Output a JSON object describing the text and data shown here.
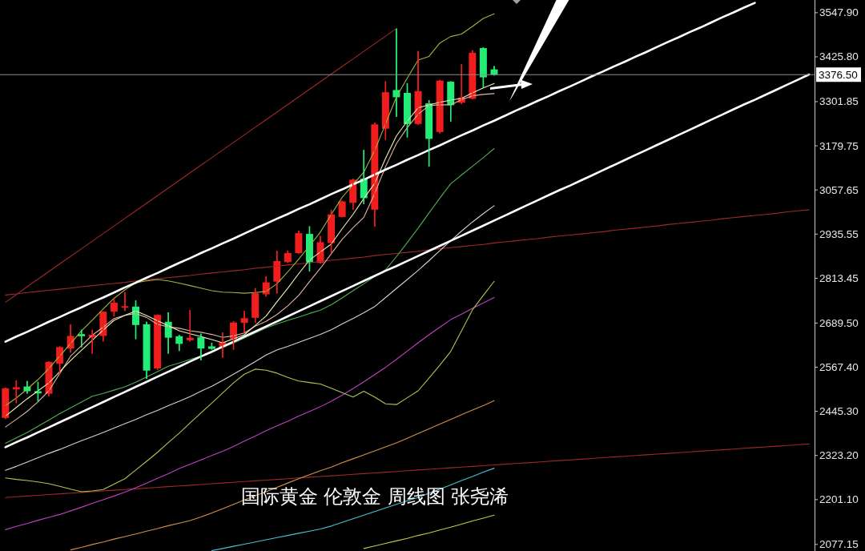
{
  "chart_data": {
    "type": "candlestick",
    "annotations": [
      "国际黄金 伦敦金 周线图 张尧浠"
    ],
    "categories": [
      null,
      null,
      null,
      null,
      null,
      null,
      null,
      null,
      null,
      null,
      null,
      null,
      null,
      null,
      null,
      null,
      null,
      null,
      null,
      null,
      null,
      null,
      null,
      null,
      null,
      null,
      null,
      null,
      null,
      null,
      null,
      null,
      null,
      null,
      null,
      null,
      null,
      null,
      null,
      null,
      null,
      null,
      null,
      null,
      null,
      null,
      null,
      null,
      null,
      null,
      null,
      null,
      null,
      null,
      null,
      null,
      null,
      null,
      null,
      null,
      null,
      null,
      null,
      null,
      null,
      null,
      null,
      null,
      null,
      null,
      null,
      null,
      null,
      null,
      null
    ],
    "ohlc": [
      [
        2427,
        2511,
        2424,
        2509
      ],
      [
        2506,
        2531,
        2468,
        2512
      ],
      [
        2514,
        2529,
        2494,
        2501
      ],
      [
        2501,
        2527,
        2472,
        2495
      ],
      [
        2494,
        2584,
        2487,
        2582
      ],
      [
        2577,
        2625,
        2549,
        2623
      ],
      [
        2619,
        2686,
        2608,
        2654
      ],
      [
        2659,
        2671,
        2623,
        2653
      ],
      [
        2650,
        2671,
        2605,
        2657
      ],
      [
        2654,
        2722,
        2639,
        2721
      ],
      [
        2721,
        2760,
        2708,
        2746
      ],
      [
        2732,
        2775,
        2723,
        2736
      ],
      [
        2735,
        2752,
        2645,
        2684
      ],
      [
        2686,
        2693,
        2535,
        2558
      ],
      [
        2564,
        2713,
        2560,
        2712
      ],
      [
        2693,
        2719,
        2605,
        2649
      ],
      [
        2653,
        2657,
        2612,
        2632
      ],
      [
        2642,
        2726,
        2638,
        2649
      ],
      [
        2650,
        2660,
        2586,
        2619
      ],
      [
        2625,
        2635,
        2616,
        2618
      ],
      [
        2623,
        2664,
        2594,
        2637
      ],
      [
        2645,
        2695,
        2616,
        2691
      ],
      [
        2690,
        2723,
        2664,
        2703
      ],
      [
        2704,
        2786,
        2690,
        2772
      ],
      [
        2769,
        2819,
        2763,
        2802
      ],
      [
        2804,
        2889,
        2771,
        2861
      ],
      [
        2858,
        2890,
        2856,
        2883
      ],
      [
        2883,
        2945,
        2881,
        2938
      ],
      [
        2936,
        2957,
        2832,
        2858
      ],
      [
        2856,
        2930,
        2854,
        2913
      ],
      [
        2911,
        3003,
        2882,
        2990
      ],
      [
        2983,
        3028,
        2982,
        3026
      ],
      [
        3022,
        3089,
        3003,
        3086
      ],
      [
        3089,
        3168,
        3018,
        3035
      ],
      [
        3003,
        3244,
        2956,
        3239
      ],
      [
        3227,
        3358,
        3196,
        3328
      ],
      [
        3334,
        3504,
        3260,
        3314
      ],
      [
        3326,
        3353,
        3203,
        3240
      ],
      [
        3240,
        3442,
        3238,
        3331
      ],
      [
        3297,
        3306,
        3122,
        3199
      ],
      [
        3218,
        3362,
        3214,
        3360
      ],
      [
        3357,
        3358,
        3247,
        3292
      ],
      [
        3299,
        3406,
        3295,
        3313
      ],
      [
        3310,
        3444,
        3309,
        3437
      ],
      [
        3450,
        3452,
        3340,
        3369
      ],
      [
        3391,
        3400,
        3374,
        3376.5
      ],
      null,
      null,
      null,
      null,
      null,
      null,
      null,
      null,
      null,
      null,
      null,
      null,
      null,
      null,
      null,
      null,
      null,
      null,
      null,
      null,
      null,
      null,
      null,
      null,
      null,
      null,
      null,
      null,
      null
    ],
    "colors": [
      "#f01e1e",
      "#f01e1e",
      "#22ee77",
      "#22ee77",
      "#f01e1e",
      "#f01e1e",
      "#f01e1e",
      "#22ee77",
      "#f01e1e",
      "#f01e1e",
      "#f01e1e",
      "#f01e1e",
      "#22ee77",
      "#22ee77",
      "#f01e1e",
      "#22ee77",
      "#22ee77",
      "#f01e1e",
      "#22ee77",
      "#22ee77",
      "#f01e1e",
      "#f01e1e",
      "#f01e1e",
      "#f01e1e",
      "#f01e1e",
      "#f01e1e",
      "#f01e1e",
      "#f01e1e",
      "#22ee77",
      "#f01e1e",
      "#f01e1e",
      "#f01e1e",
      "#f01e1e",
      "#22ee77",
      "#f01e1e",
      "#f01e1e",
      "#22ee77",
      "#22ee77",
      "#f01e1e",
      "#22ee77",
      "#f01e1e",
      "#22ee77",
      "#f01e1e",
      "#f01e1e",
      "#22ee77",
      "#22ee77",
      null,
      null,
      null,
      null,
      null,
      null,
      null,
      null,
      null,
      null,
      null,
      null,
      null,
      null,
      null,
      null,
      null,
      null,
      null,
      null,
      null,
      null,
      null,
      null,
      null,
      null,
      null,
      null,
      null
    ],
    "series": [
      {
        "type": "line",
        "color": "#a02828",
        "values": [
          2747,
          2768,
          2790,
          2811,
          2832,
          2853,
          2874,
          2895,
          2916,
          2937,
          2958,
          2979,
          3000,
          3021,
          3042,
          3063,
          3084,
          3105,
          3126,
          3147,
          3168,
          3189,
          3210,
          3231,
          3252,
          3273,
          3294,
          3315,
          3336,
          3357,
          3378,
          3399,
          3420,
          3441,
          3462,
          3483,
          3504,
          null,
          null,
          null,
          null,
          null,
          null,
          null,
          null,
          null,
          null,
          null,
          null,
          null,
          null,
          null,
          null,
          null,
          null,
          null,
          null,
          null,
          null,
          null,
          null,
          null,
          null,
          null,
          null,
          null,
          null,
          null,
          null,
          null,
          null,
          null,
          null,
          null,
          null
        ]
      },
      {
        "type": "line",
        "color": "#a02828",
        "values": [
          2767,
          2770,
          2774,
          2777,
          2780,
          2783,
          2786,
          2790,
          2793,
          2796,
          2799,
          2802,
          2806,
          2809,
          2812,
          2815,
          2818,
          2821,
          2825,
          2828,
          2831,
          2834,
          2837,
          2841,
          2844,
          2847,
          2850,
          2853,
          2856,
          2860,
          2863,
          2866,
          2869,
          2872,
          2876,
          2879,
          2882,
          2885,
          2888,
          2892,
          2895,
          2898,
          2901,
          2904,
          2907,
          2911,
          2914,
          2917,
          2920,
          2923,
          2927,
          2930,
          2933,
          2936,
          2939,
          2942,
          2946,
          2949,
          2952,
          2955,
          2958,
          2962,
          2965,
          2968,
          2971,
          2974,
          2978,
          2981,
          2984,
          2987,
          2990,
          2993,
          2997,
          3000,
          3003
        ]
      },
      {
        "type": "line",
        "color": "#a02828",
        "values": [
          2207,
          2209,
          2211,
          2213,
          2215,
          2217,
          2219,
          2221,
          2223,
          2225,
          2227,
          2229,
          2231,
          2233,
          2235,
          2237,
          2239,
          2241,
          2243,
          2245,
          2247,
          2249,
          2251,
          2253,
          2255,
          2257,
          2259,
          2261,
          2263,
          2265,
          2267,
          2269,
          2271,
          2273,
          2275,
          2277,
          2279,
          2281,
          2283,
          2285,
          2287,
          2289,
          2291,
          2293,
          2295,
          2297,
          2299,
          2301,
          2303,
          2305,
          2307,
          2309,
          2311,
          2313,
          2315,
          2317,
          2319,
          2321,
          2323,
          2325,
          2327,
          2329,
          2331,
          2333,
          2335,
          2337,
          2339,
          2341,
          2343,
          2345,
          2347,
          2349,
          2351,
          2353,
          2355
        ]
      },
      {
        "type": "line",
        "color": "#c8c83c",
        "values": [
          null,
          null,
          null,
          null,
          null,
          null,
          null,
          null,
          null,
          null,
          null,
          null,
          null,
          null,
          null,
          null,
          null,
          null,
          null,
          null,
          null,
          null,
          null,
          null,
          null,
          null,
          null,
          null,
          null,
          null,
          null,
          null,
          null,
          2066,
          2073,
          2080,
          2087,
          2094,
          2102,
          2109,
          2117,
          2125,
          2133,
          2142,
          2150,
          2158,
          null,
          null,
          null,
          null,
          null,
          null,
          null,
          null,
          null,
          null,
          null,
          null,
          null,
          null,
          null,
          null,
          null,
          null,
          null,
          null,
          null,
          null,
          null,
          null,
          null,
          null,
          null,
          null,
          null
        ]
      },
      {
        "type": "line",
        "color": "#48c0d8",
        "values": [
          null,
          null,
          null,
          null,
          null,
          null,
          null,
          null,
          null,
          null,
          null,
          null,
          null,
          null,
          null,
          null,
          null,
          null,
          null,
          2060,
          2066,
          2072,
          2078,
          2084,
          2090,
          2096,
          2102,
          2108,
          2114,
          2120,
          2128,
          2138,
          2148,
          2158,
          2168,
          2178,
          2188,
          2198,
          2207,
          2219,
          2230,
          2242,
          2254,
          2265,
          2277,
          2288,
          null,
          null,
          null,
          null,
          null,
          null,
          null,
          null,
          null,
          null,
          null,
          null,
          null,
          null,
          null,
          null,
          null,
          null,
          null,
          null,
          null,
          null,
          null,
          null,
          null,
          null,
          null,
          null,
          null
        ]
      },
      {
        "type": "line",
        "color": "#d0904a",
        "values": [
          null,
          null,
          null,
          null,
          null,
          null,
          2062,
          2069,
          2077,
          2084,
          2092,
          2099,
          2106,
          2114,
          2121,
          2129,
          2136,
          2143,
          2153,
          2164,
          2176,
          2188,
          2200,
          2212,
          2223,
          2235,
          2247,
          2259,
          2270,
          2281,
          2291,
          2303,
          2314,
          2325,
          2336,
          2347,
          2358,
          2371,
          2384,
          2397,
          2410,
          2423,
          2436,
          2449,
          2461,
          2475,
          null,
          null,
          null,
          null,
          null,
          null,
          null,
          null,
          null,
          null,
          null,
          null,
          null,
          null,
          null,
          null,
          null,
          null,
          null,
          null,
          null,
          null,
          null,
          null,
          null,
          null,
          null,
          null,
          null
        ]
      },
      {
        "type": "line",
        "color": "#c040c0",
        "values": [
          2118,
          2127,
          2135,
          2144,
          2152,
          2160,
          2170,
          2180,
          2191,
          2201,
          2211,
          2222,
          2234,
          2247,
          2260,
          2273,
          2287,
          2299,
          2311,
          2323,
          2335,
          2348,
          2363,
          2377,
          2392,
          2405,
          2418,
          2432,
          2445,
          2458,
          2473,
          2490,
          2508,
          2527,
          2547,
          2567,
          2589,
          2612,
          2635,
          2657,
          2678,
          2699,
          2714,
          2730,
          2745,
          2760,
          null,
          null,
          null,
          null,
          null,
          null,
          null,
          null,
          null,
          null,
          null,
          null,
          null,
          null,
          null,
          null,
          null,
          null,
          null,
          null,
          null,
          null,
          null,
          null,
          null,
          null,
          null,
          null,
          null
        ]
      },
      {
        "type": "line",
        "color": "#a8c850",
        "values": [
          2261,
          2257,
          2254,
          2250,
          2245,
          2238,
          2230,
          2223,
          2225,
          2229,
          2244,
          2259,
          2283,
          2307,
          2332,
          2359,
          2385,
          2413,
          2441,
          2468,
          2496,
          2524,
          2548,
          2562,
          2559,
          2551,
          2539,
          2529,
          2525,
          2521,
          2509,
          2497,
          2485,
          2501,
          2485,
          2466,
          2464,
          2483,
          2502,
          2537,
          2573,
          2611,
          2668,
          2726,
          2766,
          2805,
          null,
          null,
          null,
          null,
          null,
          null,
          null,
          null,
          null,
          null,
          null,
          null,
          null,
          null,
          null,
          null,
          null,
          null,
          null,
          null,
          null,
          null,
          null,
          null,
          null,
          null,
          null,
          null,
          null
        ]
      },
      {
        "type": "line",
        "color": "#d2d2d2",
        "values": [
          2282,
          2293,
          2305,
          2317,
          2329,
          2340,
          2352,
          2364,
          2375,
          2387,
          2399,
          2411,
          2423,
          2436,
          2448,
          2461,
          2473,
          2486,
          2501,
          2515,
          2531,
          2548,
          2565,
          2583,
          2601,
          2615,
          2625,
          2636,
          2647,
          2658,
          2671,
          2687,
          2702,
          2718,
          2735,
          2760,
          2785,
          2810,
          2835,
          2862,
          2890,
          2917,
          2944,
          2969,
          2992,
          3014,
          null,
          null,
          null,
          null,
          null,
          null,
          null,
          null,
          null,
          null,
          null,
          null,
          null,
          null,
          null,
          null,
          null,
          null,
          null,
          null,
          null,
          null,
          null,
          null,
          null,
          null,
          null,
          null,
          null
        ]
      },
      {
        "type": "line",
        "color": "#4cb050",
        "values": [
          2357,
          2372,
          2387,
          2404,
          2421,
          2439,
          2455,
          2471,
          2487,
          2495,
          2504,
          2513,
          2526,
          2540,
          2555,
          2570,
          2579,
          2589,
          2598,
          2610,
          2622,
          2634,
          2648,
          2662,
          2676,
          2687,
          2697,
          2706,
          2716,
          2725,
          2740,
          2759,
          2779,
          2798,
          2818,
          2837,
          2873,
          2912,
          2952,
          2994,
          3035,
          3075,
          3099,
          3123,
          3147,
          3172,
          null,
          null,
          null,
          null,
          null,
          null,
          null,
          null,
          null,
          null,
          null,
          null,
          null,
          null,
          null,
          null,
          null,
          null,
          null,
          null,
          null,
          null,
          null,
          null,
          null,
          null,
          null,
          null,
          null
        ]
      },
      {
        "type": "line",
        "color": "#e0b4a0",
        "values": [
          2402,
          2423,
          2445,
          2472,
          2502,
          2550,
          2598,
          2627,
          2656,
          2678,
          2702,
          2711,
          2716,
          2705,
          2686,
          2679,
          2675,
          2668,
          2664,
          2658,
          2650,
          2654,
          2662,
          2681,
          2694,
          2713,
          2737,
          2766,
          2804,
          2841,
          2881,
          2921,
          2953,
          2982,
          3048,
          3122,
          3186,
          3230,
          3267,
          3291,
          3293,
          3293,
          3307,
          3318,
          3322,
          3324,
          null,
          null,
          null,
          null,
          null,
          null,
          null,
          null,
          null,
          null,
          null,
          null,
          null,
          null,
          null,
          null,
          null,
          null,
          null,
          null,
          null,
          null,
          null,
          null,
          null,
          null,
          null,
          null,
          null
        ]
      },
      {
        "type": "line",
        "color": "#f0f0b4",
        "values": [
          2432,
          2456,
          2480,
          2502,
          2524,
          2555,
          2586,
          2614,
          2642,
          2670,
          2697,
          2711,
          2723,
          2710,
          2696,
          2682,
          2668,
          2660,
          2652,
          2644,
          2635,
          2646,
          2657,
          2683,
          2709,
          2748,
          2786,
          2826,
          2864,
          2886,
          2908,
          2950,
          2990,
          3034,
          3076,
          3145,
          3207,
          3248,
          3285,
          3293,
          3300,
          3306,
          3311,
          3326,
          3340,
          3352,
          null,
          null,
          null,
          null,
          null,
          null,
          null,
          null,
          null,
          null,
          null,
          null,
          null,
          null,
          null,
          null,
          null,
          null,
          null,
          null,
          null,
          null,
          null,
          null,
          null,
          null,
          null,
          null,
          null
        ]
      },
      {
        "type": "line",
        "color": "#9ab83c",
        "values": [
          2461,
          2482,
          2507,
          2533,
          2564,
          2598,
          2633,
          2668,
          2698,
          2728,
          2758,
          2781,
          2801,
          2806,
          2810,
          2806,
          2800,
          2793,
          2786,
          2779,
          2775,
          2774,
          2772,
          2774,
          2777,
          2798,
          2831,
          2866,
          2903,
          2941,
          2990,
          3037,
          3072,
          3107,
          3167,
          3240,
          3315,
          3367,
          3417,
          3427,
          3464,
          3482,
          3489,
          3510,
          3532,
          3545,
          null,
          null,
          null,
          null,
          null,
          null,
          null,
          null,
          null,
          null,
          null,
          null,
          null,
          null,
          null,
          null,
          null,
          null,
          null,
          null,
          null,
          null,
          null,
          null,
          null,
          null,
          null,
          null,
          null
        ]
      },
      {
        "type": "line",
        "color": "#ffffff",
        "values": [
          2638,
          2652,
          2665,
          2679,
          2693,
          2706,
          2720,
          2733,
          2747,
          2760,
          2774,
          2788,
          2801,
          2815,
          2828,
          2842,
          2856,
          2869,
          2883,
          2896,
          2910,
          2923,
          2937,
          2951,
          2964,
          2978,
          2991,
          3005,
          3018,
          3032,
          3046,
          3059,
          3073,
          3086,
          3100,
          3114,
          3127,
          3141,
          3154,
          3168,
          3181,
          3195,
          3209,
          3222,
          3236,
          3249,
          3263,
          3277,
          3290,
          3304,
          3317,
          3331,
          3344,
          3358,
          3372,
          3385,
          3399,
          3412,
          3426,
          3439,
          3453,
          3467,
          3480,
          3494,
          3507,
          3521,
          3535,
          3548,
          3562,
          3575,
          null,
          null,
          null,
          null,
          null
        ]
      },
      {
        "type": "line",
        "color": "#ffffff",
        "values": [
          2346,
          2360,
          2373,
          2387,
          2401,
          2415,
          2429,
          2443,
          2457,
          2471,
          2485,
          2499,
          2513,
          2527,
          2541,
          2555,
          2569,
          2583,
          2597,
          2610,
          2624,
          2638,
          2652,
          2666,
          2680,
          2694,
          2708,
          2722,
          2736,
          2750,
          2764,
          2778,
          2792,
          2806,
          2820,
          2834,
          2847,
          2861,
          2875,
          2889,
          2903,
          2917,
          2931,
          2945,
          2959,
          2973,
          2987,
          3001,
          3015,
          3029,
          3043,
          3057,
          3070,
          3084,
          3098,
          3112,
          3126,
          3140,
          3154,
          3168,
          3182,
          3196,
          3210,
          3224,
          3238,
          3252,
          3266,
          3280,
          3294,
          3307,
          3321,
          3335,
          3349,
          3363,
          3377
        ]
      }
    ],
    "ylim": [
      2059,
      3583
    ],
    "yticks": [
      {
        "value": 3547.9,
        "label": "3547.90"
      },
      {
        "value": 3425.8,
        "label": "3425.80"
      },
      3301.85,
      3179.75,
      3057.65,
      2935.55,
      2813.45,
      {
        "value": 2689.5,
        "label": "2689.50"
      },
      {
        "value": 2567.4,
        "label": "2567.40"
      },
      {
        "value": 2445.3,
        "label": "2445.30"
      },
      {
        "value": 2323.2,
        "label": "2323.20"
      },
      {
        "value": 2201.1,
        "label": "2201.10"
      },
      2077.15
    ],
    "ref_lines": [
      {
        "axis": "y",
        "value": 3376.5,
        "label": "3376.50",
        "color": "#8c8c8c"
      }
    ],
    "tick_labels": "y"
  }
}
